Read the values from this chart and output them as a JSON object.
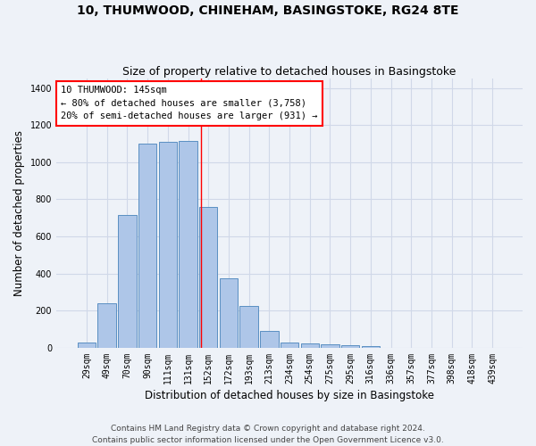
{
  "title": "10, THUMWOOD, CHINEHAM, BASINGSTOKE, RG24 8TE",
  "subtitle": "Size of property relative to detached houses in Basingstoke",
  "xlabel": "Distribution of detached houses by size in Basingstoke",
  "ylabel": "Number of detached properties",
  "categories": [
    "29sqm",
    "49sqm",
    "70sqm",
    "90sqm",
    "111sqm",
    "131sqm",
    "152sqm",
    "172sqm",
    "193sqm",
    "213sqm",
    "234sqm",
    "254sqm",
    "275sqm",
    "295sqm",
    "316sqm",
    "336sqm",
    "357sqm",
    "377sqm",
    "398sqm",
    "418sqm",
    "439sqm"
  ],
  "values": [
    30,
    240,
    715,
    1100,
    1110,
    1115,
    760,
    375,
    225,
    90,
    30,
    25,
    20,
    15,
    10,
    0,
    0,
    0,
    0,
    0,
    0
  ],
  "bar_color": "#aec6e8",
  "bar_edge_color": "#5a8fc2",
  "grid_color": "#d0d8e8",
  "background_color": "#eef2f8",
  "red_line_x": 5.62,
  "annotation_text": "10 THUMWOOD: 145sqm\n← 80% of detached houses are smaller (3,758)\n20% of semi-detached houses are larger (931) →",
  "annotation_box_color": "#ffffff",
  "annotation_text_color": "#000000",
  "footer_text": "Contains HM Land Registry data © Crown copyright and database right 2024.\nContains public sector information licensed under the Open Government Licence v3.0.",
  "ylim": [
    0,
    1450
  ],
  "title_fontsize": 10,
  "subtitle_fontsize": 9,
  "xlabel_fontsize": 8.5,
  "ylabel_fontsize": 8.5,
  "tick_fontsize": 7,
  "annotation_fontsize": 7.5,
  "footer_fontsize": 6.5
}
